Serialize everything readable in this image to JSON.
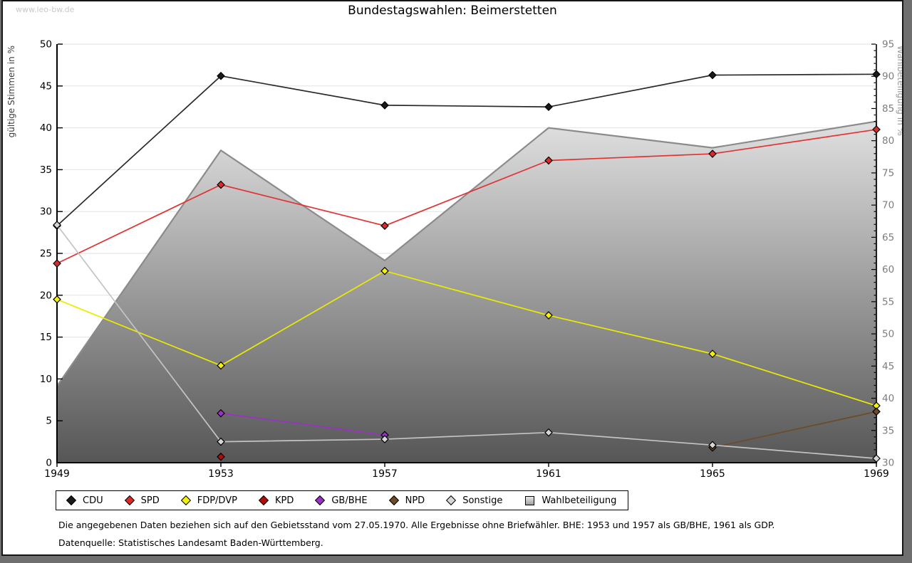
{
  "watermark": "www.leo-bw.de",
  "title": "Bundestagswahlen: Beimerstetten",
  "chart_data": {
    "type": "line",
    "x_years": [
      "1949",
      "1953",
      "1957",
      "1961",
      "1965",
      "1969"
    ],
    "left_axis": {
      "label": "gültige Stimmen in %",
      "min": 0,
      "max": 50,
      "major_step": 5,
      "ticks": [
        0,
        5,
        10,
        15,
        20,
        25,
        30,
        35,
        40,
        45,
        50
      ]
    },
    "right_axis": {
      "label": "Wahlbeteiligung in %",
      "min": 30,
      "max": 95,
      "major_step": 5,
      "minor_step": 1,
      "ticks": [
        30,
        35,
        40,
        45,
        50,
        55,
        60,
        65,
        70,
        75,
        80,
        85,
        90,
        95
      ]
    },
    "grid": true,
    "area_series": {
      "name": "Wahlbeteiligung",
      "axis": "right",
      "values": [
        41.9,
        78.5,
        61.4,
        82.0,
        78.9,
        83.0
      ],
      "stroke": "#8b8b8b",
      "fill_top": "#ffffff",
      "fill_bottom": "#565656"
    },
    "series": [
      {
        "name": "CDU",
        "color": "#1a1a1a",
        "line": "#2a2a2a",
        "values": [
          28.3,
          46.2,
          42.7,
          42.5,
          46.3,
          46.4
        ]
      },
      {
        "name": "SPD",
        "color": "#d92b2b",
        "line": "#e23333",
        "values": [
          23.8,
          33.2,
          28.3,
          36.1,
          36.9,
          39.8
        ]
      },
      {
        "name": "FDP/DVP",
        "color": "#f5ef0c",
        "line": "#ebeb00",
        "values": [
          19.5,
          11.6,
          22.9,
          17.6,
          13.0,
          6.8
        ]
      },
      {
        "name": "KPD",
        "color": "#b40b0b",
        "line": "#b40b0b",
        "values": [
          null,
          0.7,
          null,
          null,
          null,
          null
        ]
      },
      {
        "name": "GB/BHE",
        "color": "#9b30c9",
        "line": "#9b30c9",
        "values": [
          null,
          5.9,
          3.3,
          null,
          null,
          null
        ]
      },
      {
        "name": "NPD",
        "color": "#6f4a27",
        "line": "#6f4a27",
        "values": [
          null,
          null,
          null,
          null,
          1.8,
          6.1
        ]
      },
      {
        "name": "Sonstige",
        "color": "#d6d6d6",
        "line": "#c4c4c4",
        "values": [
          28.4,
          2.5,
          2.8,
          3.6,
          2.1,
          0.5
        ]
      }
    ]
  },
  "footnotes": [
    "Die angegebenen Daten beziehen sich auf den Gebietsstand vom 27.05.1970. Alle Ergebnisse ohne Briefwähler. BHE: 1953 und 1957 als GB/BHE, 1961 als GDP.",
    "Datenquelle: Statistisches Landesamt Baden-Württemberg."
  ]
}
